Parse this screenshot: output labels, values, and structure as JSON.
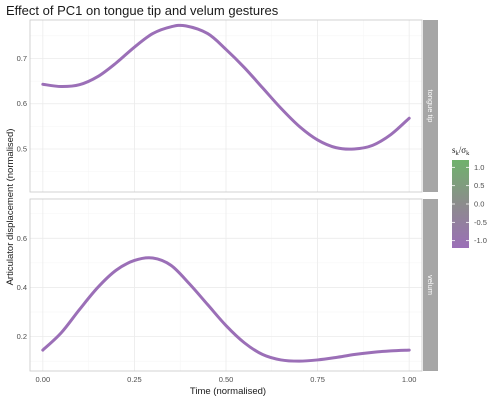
{
  "chart_data": {
    "type": "line",
    "title": "Effect of PC1 on tongue tip and velum gestures",
    "xlabel": "Time (normalised)",
    "ylabel": "Articulator displacement (normalised)",
    "x_ticks": [
      "0.00",
      "0.25",
      "0.50",
      "0.75",
      "1.00"
    ],
    "xlim": [
      -0.035,
      1.035
    ],
    "grid": true,
    "color_scale": {
      "title_main": "s",
      "title_main_sub": "k",
      "title_denom": "σ",
      "title_denom_sub": "k",
      "ticks": [
        "1.0",
        "0.5",
        "0.0",
        "-0.5",
        "-1.0"
      ],
      "range": [
        -1.2,
        1.2
      ],
      "colors": [
        "#6fb26c",
        "#8c8c8c",
        "#9b6fb7"
      ],
      "placement": "right"
    },
    "line_color": "#9b6fb7",
    "panels": [
      {
        "strip_label": "tongue tip",
        "ylim": [
          0.405,
          0.785
        ],
        "y_ticks": [
          "0.5",
          "0.6",
          "0.7"
        ],
        "y_tick_values": [
          0.5,
          0.6,
          0.7
        ],
        "x": [
          0.0,
          0.05,
          0.1,
          0.15,
          0.2,
          0.25,
          0.3,
          0.35,
          0.39,
          0.45,
          0.5,
          0.55,
          0.6,
          0.65,
          0.7,
          0.75,
          0.8,
          0.85,
          0.9,
          0.95,
          1.0
        ],
        "y": [
          0.643,
          0.638,
          0.642,
          0.66,
          0.69,
          0.725,
          0.755,
          0.77,
          0.772,
          0.755,
          0.72,
          0.68,
          0.635,
          0.59,
          0.55,
          0.52,
          0.503,
          0.5,
          0.508,
          0.532,
          0.568
        ]
      },
      {
        "strip_label": "velum",
        "ylim": [
          0.06,
          0.76
        ],
        "y_ticks": [
          "0.2",
          "0.4",
          "0.6"
        ],
        "y_tick_values": [
          0.2,
          0.4,
          0.6
        ],
        "x": [
          0.0,
          0.05,
          0.1,
          0.15,
          0.2,
          0.25,
          0.3,
          0.35,
          0.4,
          0.45,
          0.5,
          0.55,
          0.6,
          0.65,
          0.7,
          0.75,
          0.8,
          0.85,
          0.9,
          0.95,
          1.0
        ],
        "y": [
          0.145,
          0.215,
          0.31,
          0.4,
          0.47,
          0.51,
          0.52,
          0.49,
          0.415,
          0.33,
          0.245,
          0.175,
          0.127,
          0.105,
          0.1,
          0.105,
          0.115,
          0.127,
          0.136,
          0.142,
          0.145
        ]
      }
    ]
  }
}
